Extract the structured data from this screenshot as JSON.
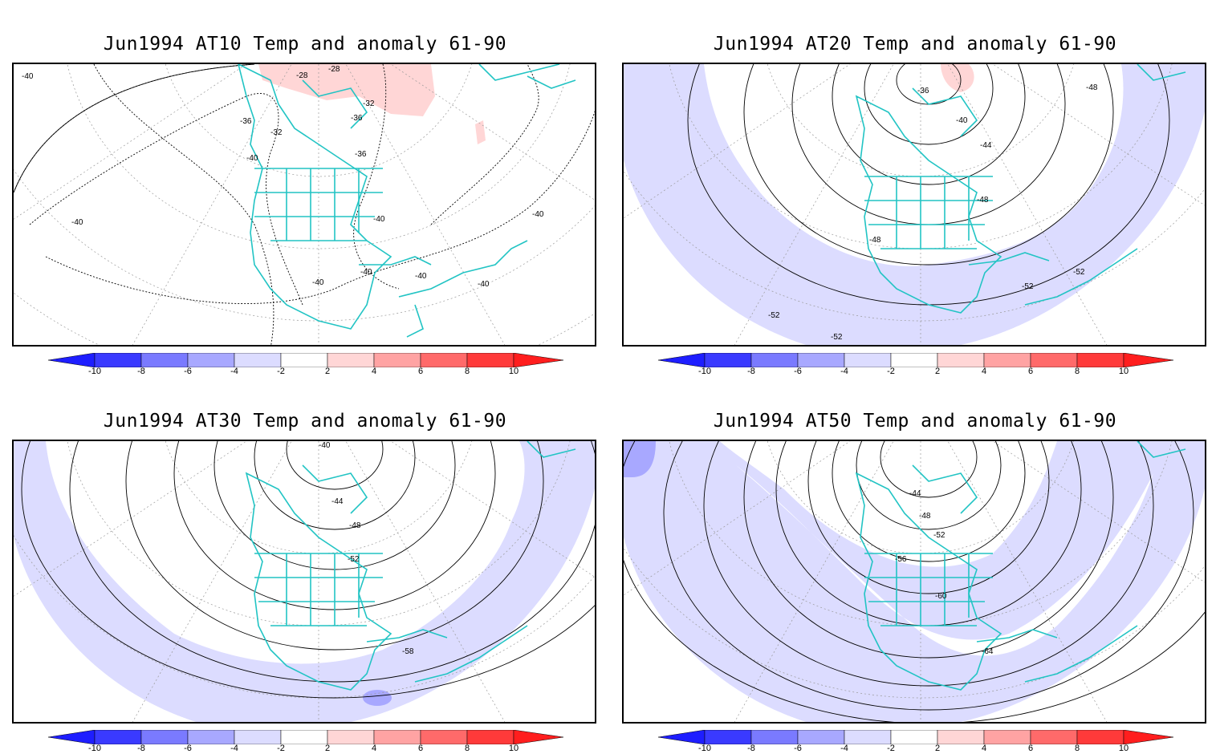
{
  "panels": [
    {
      "title": "Jun1994 AT10 Temp and anomaly 61-90",
      "contour_labels": [
        "-28",
        "-28",
        "-32",
        "-36",
        "-36",
        "-32",
        "-36",
        "-40",
        "-40",
        "-40",
        "-40",
        "-40",
        "-40",
        "-40",
        "-40",
        "-40"
      ]
    },
    {
      "title": "Jun1994 AT20 Temp and anomaly 61-90",
      "contour_labels": [
        "-36",
        "-40",
        "-44",
        "-48",
        "-48",
        "-48",
        "-52",
        "-52",
        "-52",
        "-52"
      ]
    },
    {
      "title": "Jun1994 AT30 Temp and anomaly 61-90",
      "contour_labels": [
        "-40",
        "-44",
        "-48",
        "-52",
        "-58"
      ]
    },
    {
      "title": "Jun1994 AT50 Temp and anomaly 61-90",
      "contour_labels": [
        "-44",
        "-48",
        "-52",
        "-56",
        "-60",
        "-64"
      ]
    }
  ],
  "colorbar": {
    "labels": [
      "-10",
      "-8",
      "-6",
      "-4",
      "-2",
      "2",
      "4",
      "6",
      "8",
      "10"
    ],
    "colors": [
      "#1e1eff",
      "#3a3aff",
      "#7a7aff",
      "#a8a8ff",
      "#dcdcff",
      "#ffffff",
      "#ffd6d6",
      "#ffa3a3",
      "#ff6a6a",
      "#ff3a3a",
      "#ff1e1e"
    ]
  },
  "colors": {
    "coastline": "#22c4c4",
    "cold_anomaly": "#dcdcff",
    "cold_anomaly_strong": "#a8a8ff",
    "warm_anomaly": "#ffd6d6"
  }
}
